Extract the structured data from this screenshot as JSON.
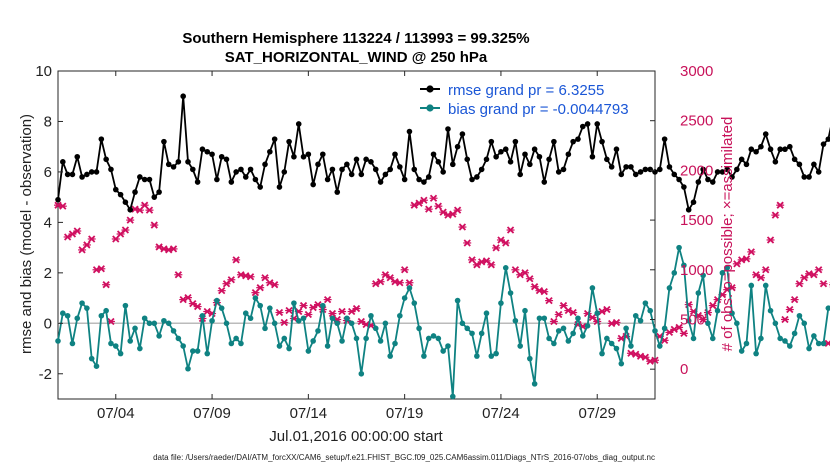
{
  "chart_data": {
    "type": "line",
    "title_line1": "Southern Hemisphere 113224 / 113993 = 99.325%",
    "title_line2": "SAT_HORIZONTAL_WIND @ 250 hPa",
    "xlabel": "Jul.01,2016 00:00:00 start",
    "ylabel": "rmse and bias (model - observation)",
    "y2label": "# of obs: o=possible; ×=assimilated",
    "xlim": [
      0.25,
      31.25
    ],
    "ylim": [
      -3,
      10
    ],
    "y2lim": [
      -300,
      3000
    ],
    "x_ticks": [
      {
        "value": 3.25,
        "label": "07/04"
      },
      {
        "value": 8.25,
        "label": "07/09"
      },
      {
        "value": 13.25,
        "label": "07/14"
      },
      {
        "value": 18.25,
        "label": "07/19"
      },
      {
        "value": 23.25,
        "label": "07/24"
      },
      {
        "value": 28.25,
        "label": "07/29"
      }
    ],
    "y_ticks": [
      -2,
      0,
      2,
      4,
      6,
      8,
      10
    ],
    "y2_ticks": [
      0,
      500,
      1000,
      1500,
      2000,
      2500,
      3000
    ],
    "colors": {
      "rmse": "#000000",
      "bias": "#0f8282",
      "obs": "#d01060",
      "zero_line": "#bbbbbb"
    },
    "x_start": 0.25,
    "x_step": 0.25,
    "series": [
      {
        "name": "rmse grand pr = 6.3255",
        "role": "rmse",
        "values": [
          4.9,
          6.4,
          5.9,
          5.9,
          6.6,
          5.8,
          5.9,
          6.0,
          6.0,
          7.3,
          6.5,
          6.1,
          5.3,
          5.1,
          4.8,
          4.5,
          5.2,
          5.8,
          5.7,
          5.7,
          5.0,
          5.2,
          7.2,
          6.3,
          6.2,
          6.4,
          9.0,
          6.4,
          6.1,
          5.6,
          6.9,
          6.8,
          6.7,
          5.7,
          6.6,
          6.5,
          5.6,
          6.0,
          6.1,
          5.8,
          6.1,
          5.7,
          5.4,
          6.3,
          6.8,
          7.3,
          5.4,
          6.0,
          7.2,
          6.6,
          7.9,
          6.6,
          6.7,
          5.5,
          6.3,
          6.7,
          5.7,
          6.1,
          5.2,
          6.1,
          6.3,
          5.9,
          6.5,
          5.9,
          6.5,
          6.4,
          6.1,
          5.6,
          5.9,
          6.1,
          6.7,
          6.2,
          5.7,
          7.6,
          6.1,
          5.7,
          5.6,
          5.8,
          6.7,
          6.4,
          6.0,
          7.7,
          6.3,
          7.0,
          7.5,
          6.5,
          5.7,
          5.8,
          6.1,
          6.5,
          7.2,
          6.6,
          6.8,
          6.9,
          6.4,
          7.2,
          5.9,
          6.7,
          6.3,
          6.9,
          6.6,
          5.6,
          6.5,
          7.2,
          6.0,
          6.1,
          6.7,
          7.2,
          7.3,
          7.8,
          7.9,
          6.6,
          7.9,
          7.2,
          6.5,
          6.2,
          6.9,
          5.9,
          6.2,
          6.2,
          5.9,
          6.0,
          6.1,
          6.1,
          6.0,
          6.1,
          7.3,
          6.2,
          5.9,
          5.7,
          5.4,
          4.5,
          4.8,
          5.6,
          6.1,
          5.7,
          5.6,
          6.0,
          6.0,
          6.1,
          5.8,
          6.1,
          6.5,
          6.3,
          6.9,
          6.8,
          7.0,
          7.5,
          6.9,
          6.4,
          6.9,
          6.9,
          7.0,
          6.5,
          6.3,
          5.8,
          5.8,
          6.3,
          6.0,
          7.1,
          7.3,
          8.2
        ]
      },
      {
        "name": "bias grand pr = -0.0044793",
        "role": "bias",
        "values": [
          -0.7,
          0.4,
          0.3,
          -0.8,
          0.2,
          0.8,
          0.6,
          -1.4,
          -1.7,
          0.3,
          0.5,
          -0.8,
          -0.9,
          -1.2,
          0.7,
          -0.7,
          -0.2,
          -1.0,
          0.2,
          0.0,
          0.0,
          -0.5,
          0.1,
          0.0,
          -0.3,
          -0.6,
          -0.9,
          -1.8,
          -1.1,
          -1.1,
          0.3,
          -1.2,
          0.1,
          0.9,
          0.6,
          0.0,
          -0.8,
          -0.6,
          -0.8,
          0.4,
          0.2,
          1.0,
          0.7,
          -0.2,
          0.6,
          0.0,
          -0.9,
          -0.6,
          -1.0,
          0.8,
          0.1,
          0.2,
          -1.1,
          -0.7,
          -0.3,
          0.7,
          -0.9,
          0.2,
          0.0,
          -0.7,
          0.2,
          0.0,
          -0.6,
          -2.0,
          -0.6,
          0.3,
          -0.2,
          -0.7,
          0.0,
          -1.3,
          -0.8,
          0.3,
          1.0,
          1.4,
          0.8,
          -0.2,
          -1.3,
          -0.6,
          -0.5,
          -0.6,
          -1.1,
          -0.9,
          -2.9,
          0.9,
          0.0,
          -0.2,
          -0.4,
          -1.3,
          -0.4,
          0.4,
          -1.3,
          -1.2,
          0.8,
          2.2,
          1.2,
          0.1,
          -0.9,
          0.5,
          -1.4,
          -2.4,
          0.2,
          0.2,
          -0.6,
          -0.8,
          -0.3,
          -0.2,
          -0.7,
          -0.4,
          0.2,
          -0.5,
          -0.1,
          1.4,
          0.4,
          -1.2,
          -0.6,
          -0.8,
          -1.0,
          -1.6,
          -0.2,
          -0.9,
          0.3,
          0.1,
          0.8,
          0.5,
          -0.3,
          -0.9,
          -0.2,
          1.4,
          2.0,
          3.0,
          2.3,
          0.1,
          -0.6,
          1.2,
          1.9,
          0.0,
          -0.6,
          0.5,
          2.0,
          2.2,
          0.4,
          0.0,
          -1.1,
          -0.8,
          1.5,
          -1.2,
          -0.6,
          1.5,
          0.5,
          0.0,
          -0.6,
          -0.7,
          -0.9,
          -0.4,
          0.3,
          0.0,
          -1.0,
          -0.5,
          -0.8,
          -0.8,
          0.6
        ]
      },
      {
        "name": "obs possible/assimilated",
        "role": "obs",
        "axis": "right",
        "values": [
          1650,
          1640,
          1330,
          1360,
          1390,
          1200,
          1250,
          1310,
          1000,
          1010,
          850,
          480,
          1310,
          1360,
          1400,
          1500,
          1610,
          1600,
          1650,
          1600,
          1450,
          1230,
          1210,
          1200,
          1210,
          950,
          700,
          720,
          660,
          630,
          510,
          580,
          560,
          670,
          790,
          860,
          900,
          1100,
          950,
          940,
          930,
          770,
          820,
          920,
          870,
          850,
          570,
          470,
          590,
          510,
          580,
          640,
          550,
          620,
          650,
          600,
          700,
          560,
          500,
          580,
          490,
          580,
          610,
          480,
          450,
          440,
          860,
          880,
          950,
          920,
          880,
          870,
          1000,
          870,
          1650,
          1670,
          1700,
          1610,
          1720,
          1640,
          1580,
          1550,
          1560,
          1600,
          1430,
          1270,
          1100,
          1050,
          1080,
          1090,
          1050,
          1220,
          1300,
          1270,
          1400,
          1000,
          950,
          970,
          910,
          830,
          790,
          780,
          690,
          480,
          550,
          640,
          590,
          570,
          450,
          430,
          560,
          520,
          480,
          580,
          600,
          460,
          470,
          310,
          330,
          160,
          150,
          130,
          120,
          80,
          90,
          330,
          290,
          370,
          400,
          420,
          360,
          650,
          580,
          540,
          500,
          570,
          640,
          700,
          750,
          800,
          820,
          1060,
          1100,
          1110,
          1180,
          950,
          920,
          1000,
          1300,
          1550,
          1650,
          500,
          600,
          700,
          860,
          920,
          960,
          950,
          1000,
          860,
          260,
          850,
          910,
          950,
          990,
          950,
          880,
          820,
          800,
          760,
          850,
          920,
          950,
          1050,
          1090,
          1030,
          1350,
          1390,
          1380,
          1400,
          1340,
          0
        ]
      }
    ]
  },
  "footnote": "data file: /Users/raeder/DAI/ATM_forcXX/CAM6_setup/f.e21.FHIST_BGC.f09_025.CAM6assim.011/Diags_NTrS_2016-07/obs_diag_output.nc"
}
